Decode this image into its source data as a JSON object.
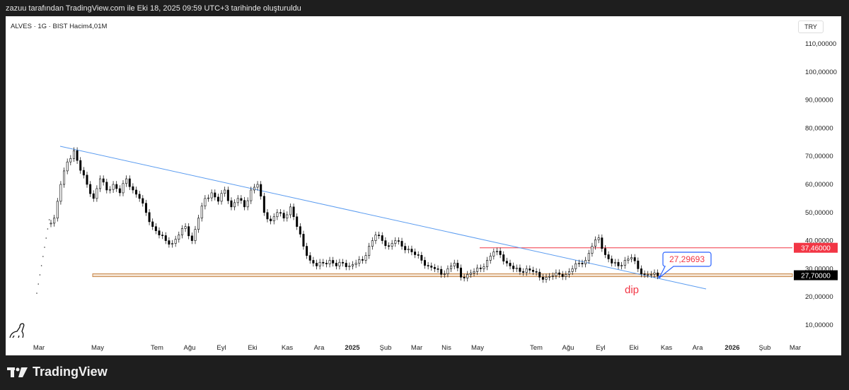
{
  "caption": "zazuu tarafından TradingView.com ile Eki 18, 2025 09:59 UTC+3 tarihinde oluşturuldu",
  "symbol_info": "ALVES · 1G · BIST  Hacim4,01M",
  "currency": "TRY",
  "brand": "TradingView",
  "chart_data": {
    "type": "candlestick",
    "ylim": [
      0,
      115
    ],
    "y_ticks": [
      {
        "v": 110,
        "label": "110,00000"
      },
      {
        "v": 100,
        "label": "100,00000"
      },
      {
        "v": 90,
        "label": "90,00000"
      },
      {
        "v": 80,
        "label": "80,00000"
      },
      {
        "v": 70,
        "label": "70,00000"
      },
      {
        "v": 60,
        "label": "60,00000"
      },
      {
        "v": 50,
        "label": "50,00000"
      },
      {
        "v": 40,
        "label": "40,00000"
      },
      {
        "v": 30,
        "label": "30,00000"
      },
      {
        "v": 20,
        "label": "20,00000"
      },
      {
        "v": 10,
        "label": "10,00000"
      }
    ],
    "x_ticks": [
      "Mar",
      "May",
      "Tem",
      "Ağu",
      "Eyl",
      "Eki",
      "Kas",
      "Ara",
      "2025",
      "Şub",
      "Mar",
      "Nis",
      "May",
      "Tem",
      "Ağu",
      "Eyl",
      "Eki",
      "Kas",
      "Ara",
      "2026",
      "Şub",
      "Mar"
    ],
    "closes": [
      48,
      60,
      68,
      72,
      65,
      60,
      55,
      62,
      58,
      60,
      57,
      62,
      58,
      55,
      50,
      45,
      42,
      40,
      39,
      42,
      45,
      40,
      48,
      55,
      57,
      54,
      58,
      52,
      55,
      52,
      58,
      60,
      50,
      47,
      50,
      48,
      52,
      45,
      38,
      33,
      31,
      32,
      33,
      31,
      32,
      31,
      32,
      33,
      38,
      42,
      40,
      38,
      40,
      38,
      37,
      35,
      33,
      31,
      30,
      28,
      30,
      32,
      27,
      28,
      29,
      30,
      33,
      36,
      35,
      32,
      30,
      29,
      30,
      29,
      27,
      27,
      27.5,
      28,
      28,
      30,
      32,
      33,
      38,
      41,
      35,
      32,
      31,
      33,
      34,
      30,
      28,
      28,
      27.5
    ],
    "price_labels": [
      {
        "v": 37.46,
        "label": "37,46000",
        "color": "#f23645"
      },
      {
        "v": 27.7,
        "label": "27,70000",
        "color": "#000000"
      }
    ],
    "trendline": {
      "from": 73,
      "to": 22
    },
    "callout": "27,29693",
    "annotation": "dip",
    "colors": {
      "trend": "#5b9cf0",
      "resistance": "#f23645",
      "support": "#c8874a"
    }
  }
}
